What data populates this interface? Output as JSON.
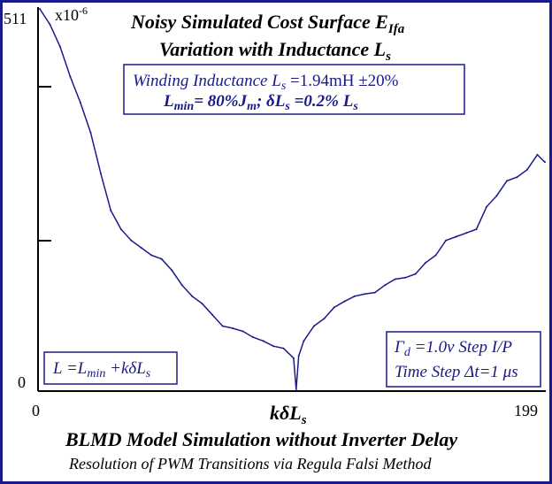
{
  "chart_data": {
    "type": "line",
    "title_line1": "Noisy Simulated Cost Surface E",
    "title_line1_sub": "Ifa",
    "title_line2": "Variation with Inductance L",
    "title_line2_sub": "s",
    "y_scale_label": "x10",
    "y_scale_exp": "-6",
    "y_tick_labels": [
      "511",
      "0"
    ],
    "x_tick_labels": [
      "0",
      "199"
    ],
    "xlabel": "kδL",
    "xlabel_sub": "s",
    "xlim": [
      0,
      199
    ],
    "ylim": [
      0,
      511
    ],
    "series": [
      {
        "color": "#1a1a8c",
        "x": [
          0,
          4,
          8,
          12,
          16,
          20,
          24,
          28,
          32,
          36,
          40,
          44,
          48,
          52,
          56,
          60,
          64,
          68,
          72,
          76,
          80,
          84,
          88,
          92,
          96,
          100,
          101,
          102,
          104,
          108,
          112,
          116,
          120,
          124,
          128,
          132,
          136,
          140,
          144,
          148,
          152,
          156,
          160,
          164,
          168,
          172,
          176,
          180,
          184,
          188,
          192,
          196,
          199
        ],
        "y": [
          511,
          490,
          460,
          420,
          385,
          345,
          290,
          240,
          215,
          200,
          190,
          180,
          175,
          160,
          140,
          125,
          115,
          100,
          85,
          82,
          78,
          70,
          65,
          58,
          55,
          42,
          0,
          45,
          65,
          85,
          95,
          110,
          118,
          125,
          128,
          130,
          140,
          148,
          150,
          155,
          170,
          180,
          200,
          205,
          210,
          215,
          245,
          260,
          280,
          285,
          295,
          315,
          305
        ]
      }
    ]
  },
  "info_box": {
    "line1_a": "Winding Inductance L",
    "line1_sub": "s",
    "line1_b": " =1.94mH ±20%",
    "line2_a": "L",
    "line2_sub": "min",
    "line2_b": "= 80%J",
    "line2_sub2": "m",
    "line2_c": "; δL",
    "line2_sub3": "s",
    "line2_d": " =0.2% L",
    "line2_sub4": "s"
  },
  "formula_box": {
    "a": "L =L",
    "sub": "min",
    "b": " +kδL",
    "sub2": "s"
  },
  "step_box": {
    "line1_a": "Γ",
    "line1_sub": "d",
    "line1_b": " =1.0v Step I/P",
    "line2": "Time Step Δt=1 μs"
  },
  "footer": {
    "title": "BLMD Model Simulation without Inverter Delay",
    "subtitle": "Resolution of PWM Transitions via Regula Falsi Method"
  }
}
